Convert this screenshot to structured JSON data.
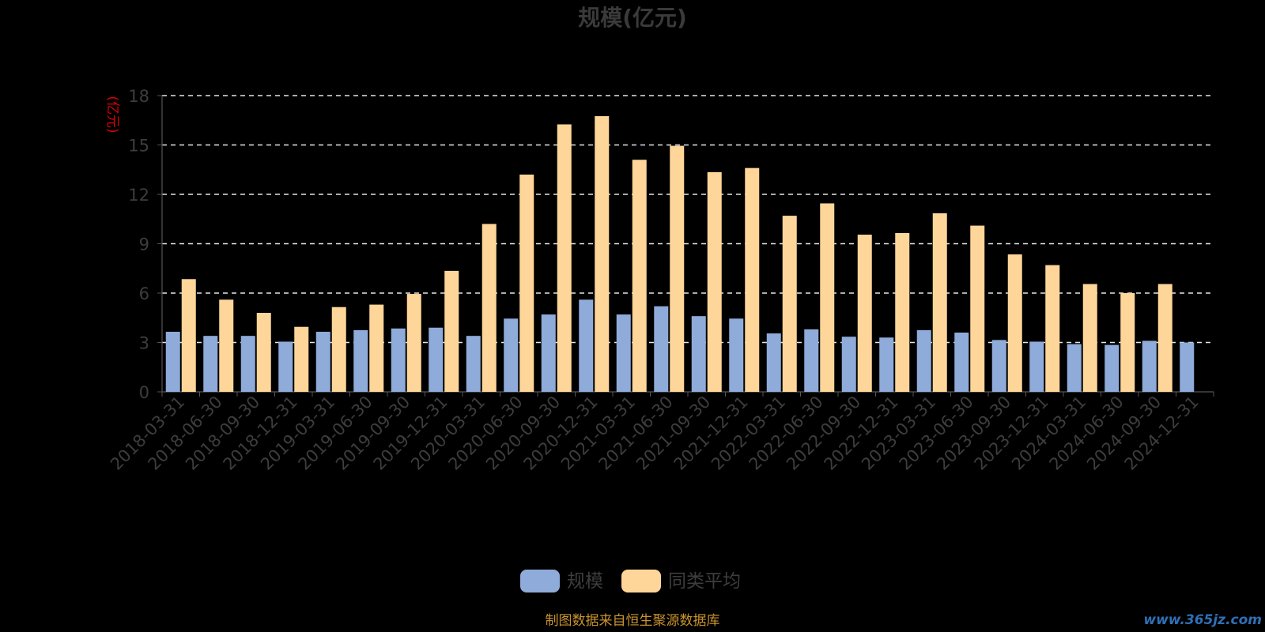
{
  "colors": {
    "background": "#000000",
    "title": "#3a3a3a",
    "axis_text": "#3d3d3d",
    "axis_line": "#555555",
    "grid": "#e6e6e6",
    "unit_label": "#e00000",
    "series_scale": "#8eabd9",
    "series_avg": "#ffd699",
    "source": "#c9932e",
    "watermark": "#2f6fb7"
  },
  "source_note": "制图数据来自恒生聚源数据库",
  "watermark": "www.365jz.com",
  "chart_data": {
    "type": "bar",
    "title": "规模(亿元)",
    "ylabel": "(亿元)",
    "xlabel": "",
    "ylim": [
      0,
      18
    ],
    "yticks": [
      "0",
      "3",
      "6",
      "9",
      "12",
      "15",
      "18"
    ],
    "grid": true,
    "legend_position": "bottom",
    "categories": [
      "2018-03-31",
      "2018-06-30",
      "2018-09-30",
      "2018-12-31",
      "2019-03-31",
      "2019-06-30",
      "2019-09-30",
      "2019-12-31",
      "2020-03-31",
      "2020-06-30",
      "2020-09-30",
      "2020-12-31",
      "2021-03-31",
      "2021-06-30",
      "2021-09-30",
      "2021-12-31",
      "2022-03-31",
      "2022-06-30",
      "2022-09-30",
      "2022-12-31",
      "2023-03-31",
      "2023-06-30",
      "2023-09-30",
      "2023-12-31",
      "2024-03-31",
      "2024-06-30",
      "2024-09-30",
      "2024-12-31"
    ],
    "series": [
      {
        "name": "规模",
        "values": [
          3.65,
          3.4,
          3.4,
          3.05,
          3.65,
          3.75,
          3.85,
          3.9,
          3.4,
          4.45,
          4.7,
          5.6,
          4.7,
          5.2,
          4.6,
          4.45,
          3.55,
          3.8,
          3.35,
          3.3,
          3.75,
          3.6,
          3.15,
          3.05,
          2.9,
          2.85,
          3.1,
          3.0
        ]
      },
      {
        "name": "同类平均",
        "values": [
          6.85,
          5.6,
          4.8,
          3.95,
          5.15,
          5.3,
          5.95,
          7.35,
          10.2,
          13.2,
          16.25,
          16.75,
          14.1,
          14.95,
          13.35,
          13.6,
          10.7,
          11.45,
          9.55,
          9.65,
          10.85,
          10.1,
          8.35,
          7.7,
          6.55,
          6.0,
          6.55,
          null
        ]
      }
    ]
  }
}
